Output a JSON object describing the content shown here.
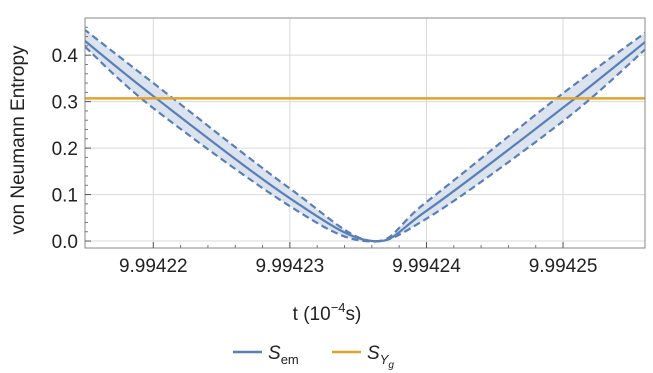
{
  "chart_data": {
    "type": "line",
    "title": "",
    "xlabel": {
      "main": "t (10",
      "sup": "−4",
      "tail": "s)"
    },
    "ylabel": "von Neumann Entropy",
    "xlim": [
      9.994215,
      9.994256
    ],
    "ylim": [
      -0.015,
      0.48
    ],
    "x_ticks": [
      9.99422,
      9.99423,
      9.99424,
      9.99425
    ],
    "x_tick_labels": [
      "9.99422",
      "9.99423",
      "9.99424",
      "9.99425"
    ],
    "y_ticks": [
      0.0,
      0.1,
      0.2,
      0.3,
      0.4
    ],
    "y_tick_labels": [
      "0.0",
      "0.1",
      "0.2",
      "0.3",
      "0.4"
    ],
    "grid": true,
    "legend_position": "bottom-center",
    "colors": {
      "em": "#5a7fb7",
      "band": "#dbe3ef",
      "yg": "#e2a32c",
      "grid": "#d9d9d9"
    },
    "series": [
      {
        "id": "em",
        "legend": {
          "base": "S",
          "sub": "em"
        },
        "x": [
          9.994214,
          9.99422,
          9.99423,
          9.994236,
          9.99424,
          9.99425,
          9.994257
        ],
        "y": [
          0.455,
          0.312,
          0.092,
          0.0,
          0.065,
          0.287,
          0.452
        ]
      },
      {
        "id": "em_upper",
        "x": [
          9.994213,
          9.99422,
          9.99423,
          9.994236,
          9.99424,
          9.99425,
          9.994258
        ],
        "y": [
          0.5,
          0.34,
          0.113,
          0.0,
          0.084,
          0.318,
          0.49
        ]
      },
      {
        "id": "em_lower",
        "x": [
          9.994215,
          9.99422,
          9.99423,
          9.9942355,
          9.99424,
          9.99425,
          9.994256
        ],
        "y": [
          0.418,
          0.286,
          0.075,
          0.0,
          0.048,
          0.258,
          0.412
        ]
      },
      {
        "id": "yg",
        "legend": {
          "base": "S",
          "sub": "Y",
          "subsub": "g"
        },
        "x": [
          9.994215,
          9.994256
        ],
        "y": [
          0.307,
          0.307
        ]
      }
    ]
  }
}
